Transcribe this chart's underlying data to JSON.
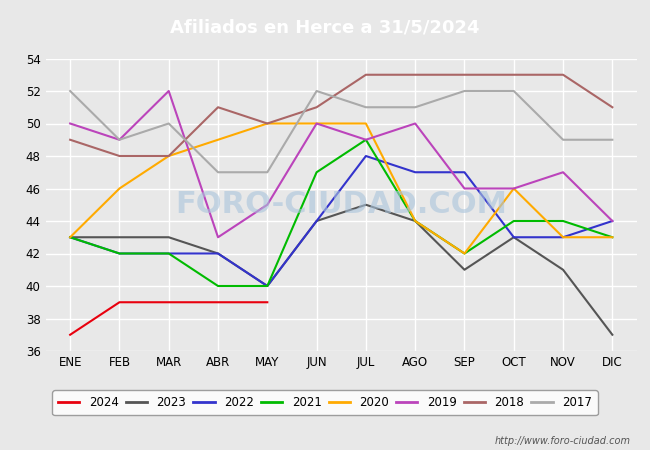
{
  "title": "Afiliados en Herce a 31/5/2024",
  "ylim": [
    36,
    54
  ],
  "yticks": [
    36,
    38,
    40,
    42,
    44,
    46,
    48,
    50,
    52,
    54
  ],
  "months": [
    "ENE",
    "FEB",
    "MAR",
    "ABR",
    "MAY",
    "JUN",
    "JUL",
    "AGO",
    "SEP",
    "OCT",
    "NOV",
    "DIC"
  ],
  "series": {
    "2024": {
      "color": "#e8000e",
      "data": [
        37,
        39,
        39,
        39,
        39,
        null,
        null,
        null,
        null,
        null,
        null,
        null
      ]
    },
    "2023": {
      "color": "#555555",
      "data": [
        43,
        43,
        43,
        42,
        40,
        44,
        45,
        44,
        41,
        43,
        41,
        37
      ]
    },
    "2022": {
      "color": "#3333cc",
      "data": [
        43,
        42,
        42,
        42,
        40,
        44,
        48,
        47,
        47,
        43,
        43,
        44
      ]
    },
    "2021": {
      "color": "#00bb00",
      "data": [
        43,
        42,
        42,
        40,
        40,
        47,
        49,
        44,
        42,
        44,
        44,
        43
      ]
    },
    "2020": {
      "color": "#ffaa00",
      "data": [
        43,
        46,
        48,
        49,
        50,
        50,
        50,
        44,
        42,
        46,
        43,
        43
      ]
    },
    "2019": {
      "color": "#bb44bb",
      "data": [
        50,
        49,
        52,
        43,
        45,
        50,
        49,
        50,
        46,
        46,
        47,
        44
      ]
    },
    "2018": {
      "color": "#aa6666",
      "data": [
        49,
        48,
        48,
        51,
        50,
        51,
        53,
        53,
        53,
        53,
        53,
        51
      ]
    },
    "2017": {
      "color": "#aaaaaa",
      "data": [
        52,
        49,
        50,
        47,
        47,
        52,
        51,
        51,
        52,
        52,
        49,
        49
      ]
    }
  },
  "watermark": "FORO-CIUDAD.COM",
  "url": "http://www.foro-ciudad.com",
  "legend_order": [
    "2024",
    "2023",
    "2022",
    "2021",
    "2020",
    "2019",
    "2018",
    "2017"
  ],
  "title_bg": "#4472c4",
  "plot_bg": "#e8e8e8",
  "grid_color": "#ffffff"
}
